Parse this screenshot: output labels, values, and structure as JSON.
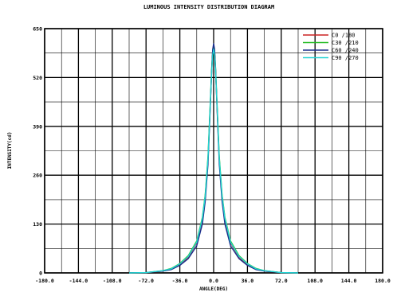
{
  "chart_data": {
    "type": "line",
    "title": "LUMINOUS INTENSITY DISTRIBUTION DIAGRAM",
    "xlabel": "ANGLE(DEG)",
    "ylabel": "INTENSITY(cd)",
    "xlim": [
      -180,
      180
    ],
    "ylim": [
      0,
      650
    ],
    "x_ticks": [
      -180,
      -144,
      -108,
      -72,
      -36,
      0,
      36,
      72,
      108,
      144,
      180
    ],
    "x_tick_labels": [
      "-180.0",
      "-144.0",
      "-108.0",
      "-72.0",
      "-36.0",
      "0.0",
      "36.0",
      "72.0",
      "108.0",
      "144.0",
      "180.0"
    ],
    "y_ticks": [
      0,
      130,
      260,
      390,
      520,
      650
    ],
    "y_tick_labels": [
      "0",
      "130",
      "260",
      "390",
      "520",
      "650"
    ],
    "grid": true,
    "legend_position": "top-right",
    "series": [
      {
        "name": "C0 /180",
        "color": "#cc2222",
        "x": [
          -90,
          -72,
          -54,
          -45,
          -36,
          -27,
          -18,
          -12,
          -9,
          -6,
          -4,
          -2,
          -1,
          0,
          1,
          2,
          4,
          6,
          9,
          12,
          18,
          27,
          36,
          45,
          54,
          72,
          90
        ],
        "y": [
          0,
          1,
          5,
          10,
          22,
          42,
          80,
          140,
          200,
          300,
          420,
          540,
          585,
          600,
          585,
          540,
          420,
          300,
          200,
          140,
          80,
          42,
          22,
          10,
          5,
          1,
          0
        ]
      },
      {
        "name": "C30 /210",
        "color": "#22bb22",
        "x": [
          -90,
          -72,
          -54,
          -45,
          -36,
          -27,
          -18,
          -12,
          -9,
          -6,
          -4,
          -2,
          -1,
          0,
          1,
          2,
          4,
          6,
          9,
          12,
          18,
          27,
          36,
          45,
          54,
          72,
          90
        ],
        "y": [
          0,
          1,
          6,
          12,
          25,
          46,
          85,
          148,
          208,
          310,
          430,
          548,
          590,
          602,
          590,
          548,
          430,
          310,
          208,
          148,
          85,
          46,
          25,
          12,
          6,
          1,
          0
        ]
      },
      {
        "name": "C60 /240",
        "color": "#1a2e8c",
        "x": [
          -90,
          -72,
          -54,
          -45,
          -36,
          -27,
          -18,
          -12,
          -9,
          -6,
          -4,
          -2,
          -1,
          0,
          1,
          2,
          4,
          6,
          9,
          12,
          18,
          27,
          36,
          45,
          54,
          72,
          90
        ],
        "y": [
          0,
          1,
          5,
          9,
          20,
          38,
          72,
          130,
          190,
          290,
          415,
          545,
          595,
          610,
          595,
          545,
          415,
          290,
          190,
          130,
          72,
          38,
          20,
          9,
          5,
          1,
          0
        ]
      },
      {
        "name": "C90 /270",
        "color": "#22d4d4",
        "x": [
          -90,
          -72,
          -54,
          -45,
          -36,
          -27,
          -18,
          -12,
          -9,
          -6,
          -4,
          -2,
          -1,
          0,
          1,
          2,
          4,
          6,
          9,
          12,
          18,
          27,
          36,
          45,
          54,
          72,
          90
        ],
        "y": [
          0,
          1,
          6,
          11,
          24,
          44,
          82,
          145,
          205,
          305,
          425,
          540,
          580,
          595,
          580,
          540,
          425,
          305,
          205,
          145,
          82,
          44,
          24,
          11,
          6,
          1,
          0
        ]
      }
    ]
  }
}
